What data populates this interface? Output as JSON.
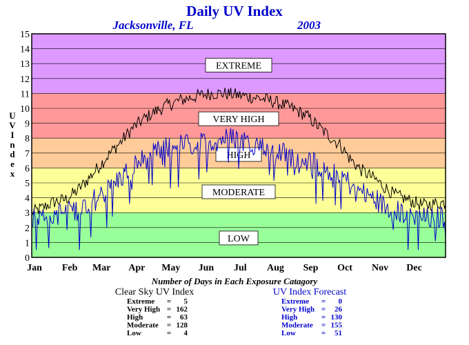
{
  "chart_data": {
    "type": "line",
    "title": "Daily UV Index",
    "location": "Jacksonville, FL",
    "year": "2003",
    "ylabel": "UV Index",
    "ylim": [
      0,
      15
    ],
    "yticks": [
      "0",
      "1",
      "2",
      "3",
      "4",
      "5",
      "6",
      "7",
      "8",
      "9",
      "10",
      "11",
      "12",
      "13",
      "14",
      "15"
    ],
    "months": [
      "Jan",
      "Feb",
      "Mar",
      "Apr",
      "May",
      "Jun",
      "Jul",
      "Aug",
      "Sep",
      "Oct",
      "Nov",
      "Dec"
    ],
    "xlim": [
      1,
      365
    ],
    "bands": [
      {
        "label": "LOW",
        "from": 0,
        "to": 3,
        "color": "#99ff99"
      },
      {
        "label": "MODERATE",
        "from": 3,
        "to": 6,
        "color": "#ffff99"
      },
      {
        "label": "HIGH",
        "from": 6,
        "to": 8,
        "color": "#ffcc99"
      },
      {
        "label": "VERY HIGH",
        "from": 8,
        "to": 11,
        "color": "#ff9999"
      },
      {
        "label": "EXTREME",
        "from": 11,
        "to": 15,
        "color": "#dd99ff"
      }
    ],
    "series": [
      {
        "name": "Clear Sky UV Index",
        "color": "#000000",
        "points": [
          [
            1,
            3.0
          ],
          [
            10,
            3.3
          ],
          [
            20,
            3.7
          ],
          [
            31,
            3.9
          ],
          [
            40,
            4.4
          ],
          [
            50,
            5.2
          ],
          [
            59,
            6.0
          ],
          [
            70,
            7.0
          ],
          [
            80,
            7.8
          ],
          [
            90,
            8.7
          ],
          [
            100,
            9.3
          ],
          [
            110,
            9.8
          ],
          [
            120,
            10.2
          ],
          [
            130,
            10.5
          ],
          [
            140,
            10.7
          ],
          [
            151,
            10.9
          ],
          [
            160,
            11.0
          ],
          [
            170,
            11.0
          ],
          [
            181,
            10.9
          ],
          [
            190,
            10.8
          ],
          [
            200,
            10.7
          ],
          [
            212,
            10.5
          ],
          [
            220,
            10.3
          ],
          [
            230,
            10.0
          ],
          [
            243,
            9.5
          ],
          [
            250,
            9.0
          ],
          [
            260,
            8.3
          ],
          [
            273,
            7.5
          ],
          [
            280,
            6.7
          ],
          [
            290,
            5.9
          ],
          [
            304,
            5.2
          ],
          [
            310,
            4.8
          ],
          [
            320,
            4.2
          ],
          [
            334,
            3.8
          ],
          [
            345,
            3.5
          ],
          [
            355,
            3.6
          ],
          [
            365,
            3.7
          ]
        ]
      },
      {
        "name": "UV Index Forecast",
        "color": "#0000cc",
        "points": [
          [
            1,
            2.7
          ],
          [
            10,
            2.8
          ],
          [
            20,
            2.9
          ],
          [
            31,
            3.0
          ],
          [
            40,
            3.2
          ],
          [
            50,
            3.6
          ],
          [
            59,
            4.0
          ],
          [
            70,
            4.7
          ],
          [
            80,
            5.4
          ],
          [
            90,
            6.1
          ],
          [
            100,
            6.6
          ],
          [
            110,
            7.0
          ],
          [
            120,
            7.3
          ],
          [
            130,
            7.5
          ],
          [
            140,
            7.6
          ],
          [
            151,
            7.6
          ],
          [
            160,
            7.8
          ],
          [
            170,
            8.0
          ],
          [
            181,
            8.0
          ],
          [
            190,
            7.8
          ],
          [
            200,
            7.6
          ],
          [
            212,
            7.3
          ],
          [
            220,
            7.0
          ],
          [
            230,
            6.8
          ],
          [
            243,
            6.5
          ],
          [
            250,
            6.2
          ],
          [
            260,
            6.0
          ],
          [
            273,
            5.6
          ],
          [
            280,
            5.0
          ],
          [
            290,
            4.4
          ],
          [
            304,
            3.9
          ],
          [
            310,
            3.5
          ],
          [
            320,
            3.1
          ],
          [
            334,
            2.9
          ],
          [
            345,
            2.6
          ],
          [
            355,
            2.6
          ],
          [
            365,
            2.8
          ]
        ]
      }
    ],
    "table": {
      "title": "Number of Days in Each Exposure Catagory",
      "columns": [
        {
          "header": "Clear Sky UV Index",
          "color": "#000000",
          "rows": [
            {
              "label": "Extreme",
              "value": "5"
            },
            {
              "label": "Very High",
              "value": "162"
            },
            {
              "label": "High",
              "value": "63"
            },
            {
              "label": "Moderate",
              "value": "128"
            },
            {
              "label": "Low",
              "value": "4"
            }
          ]
        },
        {
          "header": "UV Index Forecast",
          "color": "#0000cc",
          "rows": [
            {
              "label": "Extreme",
              "value": "0"
            },
            {
              "label": "Very High",
              "value": "26"
            },
            {
              "label": "High",
              "value": "130"
            },
            {
              "label": "Moderate",
              "value": "155"
            },
            {
              "label": "Low",
              "value": "51"
            }
          ]
        }
      ]
    }
  }
}
